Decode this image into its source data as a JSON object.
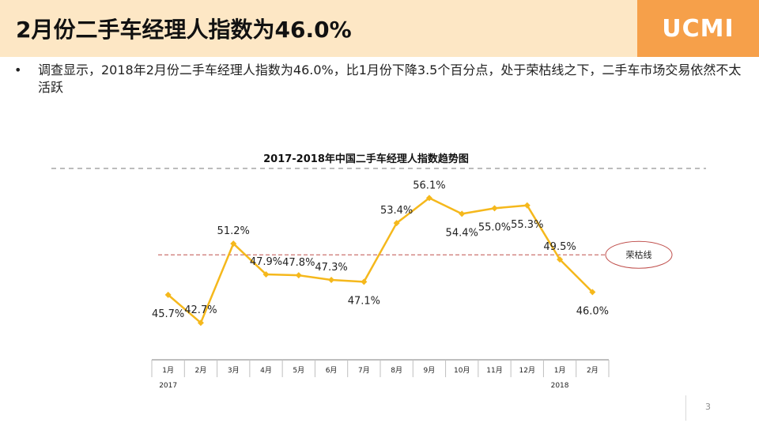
{
  "header": {
    "title": "2月份二手车经理人指数为46.0%",
    "brand": "UCMI"
  },
  "bullet": {
    "dot": "•",
    "text": "调查显示，2018年2月份二手车经理人指数为46.0%，比1月份下降3.5个百分点，处于荣枯线之下，二手车市场交易依然不太活跃"
  },
  "page_number": "3",
  "colors": {
    "header_band": "#fde7c5",
    "brand_box": "#f6a04a",
    "line": "#f5b81c",
    "threshold": "#c0504d"
  },
  "chart_data": {
    "type": "line",
    "title": "2017-2018年中国二手车经理人指数趋势图",
    "categories": [
      "1月",
      "2月",
      "3月",
      "4月",
      "5月",
      "6月",
      "7月",
      "8月",
      "9月",
      "10月",
      "11月",
      "12月",
      "1月",
      "2月"
    ],
    "year_labels": [
      {
        "index": 0,
        "label": "2017"
      },
      {
        "index": 12,
        "label": "2018"
      }
    ],
    "series": [
      {
        "name": "中国二手车经理人指数",
        "values": [
          45.7,
          42.7,
          51.2,
          47.9,
          47.8,
          47.3,
          47.1,
          53.4,
          56.1,
          54.4,
          55.0,
          55.3,
          49.5,
          46.0
        ],
        "labels": [
          "45.7%",
          "42.7%",
          "51.2%",
          "47.9%",
          "47.8%",
          "47.3%",
          "47.1%",
          "53.4%",
          "56.1%",
          "54.4%",
          "55.0%",
          "55.3%",
          "49.5%",
          "46.0%"
        ],
        "label_positions": [
          "below",
          "above",
          "above",
          "above",
          "above",
          "above",
          "below",
          "above",
          "above",
          "below",
          "below",
          "below",
          "above",
          "below"
        ]
      }
    ],
    "threshold": {
      "value": 50,
      "label": "荣枯线"
    },
    "xlabel": "",
    "ylabel": "",
    "ylim": [
      40,
      58
    ],
    "grid": false
  }
}
